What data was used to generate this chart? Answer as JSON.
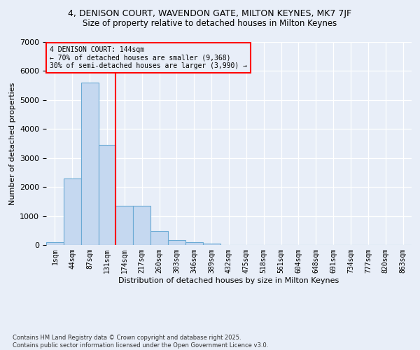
{
  "title1": "4, DENISON COURT, WAVENDON GATE, MILTON KEYNES, MK7 7JF",
  "title2": "Size of property relative to detached houses in Milton Keynes",
  "xlabel": "Distribution of detached houses by size in Milton Keynes",
  "ylabel": "Number of detached properties",
  "categories": [
    "1sqm",
    "44sqm",
    "87sqm",
    "131sqm",
    "174sqm",
    "217sqm",
    "260sqm",
    "303sqm",
    "346sqm",
    "389sqm",
    "432sqm",
    "475sqm",
    "518sqm",
    "561sqm",
    "604sqm",
    "648sqm",
    "691sqm",
    "734sqm",
    "777sqm",
    "820sqm",
    "863sqm"
  ],
  "values": [
    100,
    2300,
    5600,
    3450,
    1350,
    1350,
    480,
    175,
    100,
    60,
    0,
    0,
    0,
    0,
    0,
    0,
    0,
    0,
    0,
    0,
    0
  ],
  "bar_color": "#c5d8f0",
  "bar_edge_color": "#6aaad4",
  "vline_x": 3,
  "vline_color": "red",
  "annotation_title": "4 DENISON COURT: 144sqm",
  "annotation_line1": "← 70% of detached houses are smaller (9,368)",
  "annotation_line2": "30% of semi-detached houses are larger (3,990) →",
  "annotation_box_color": "red",
  "ylim": [
    0,
    7000
  ],
  "yticks": [
    0,
    1000,
    2000,
    3000,
    4000,
    5000,
    6000,
    7000
  ],
  "footer1": "Contains HM Land Registry data © Crown copyright and database right 2025.",
  "footer2": "Contains public sector information licensed under the Open Government Licence v3.0.",
  "bg_color": "#e8eef8",
  "grid_color": "#ffffff",
  "title_fontsize": 9,
  "axis_label_fontsize": 8,
  "tick_fontsize": 7,
  "annotation_fontsize": 7
}
